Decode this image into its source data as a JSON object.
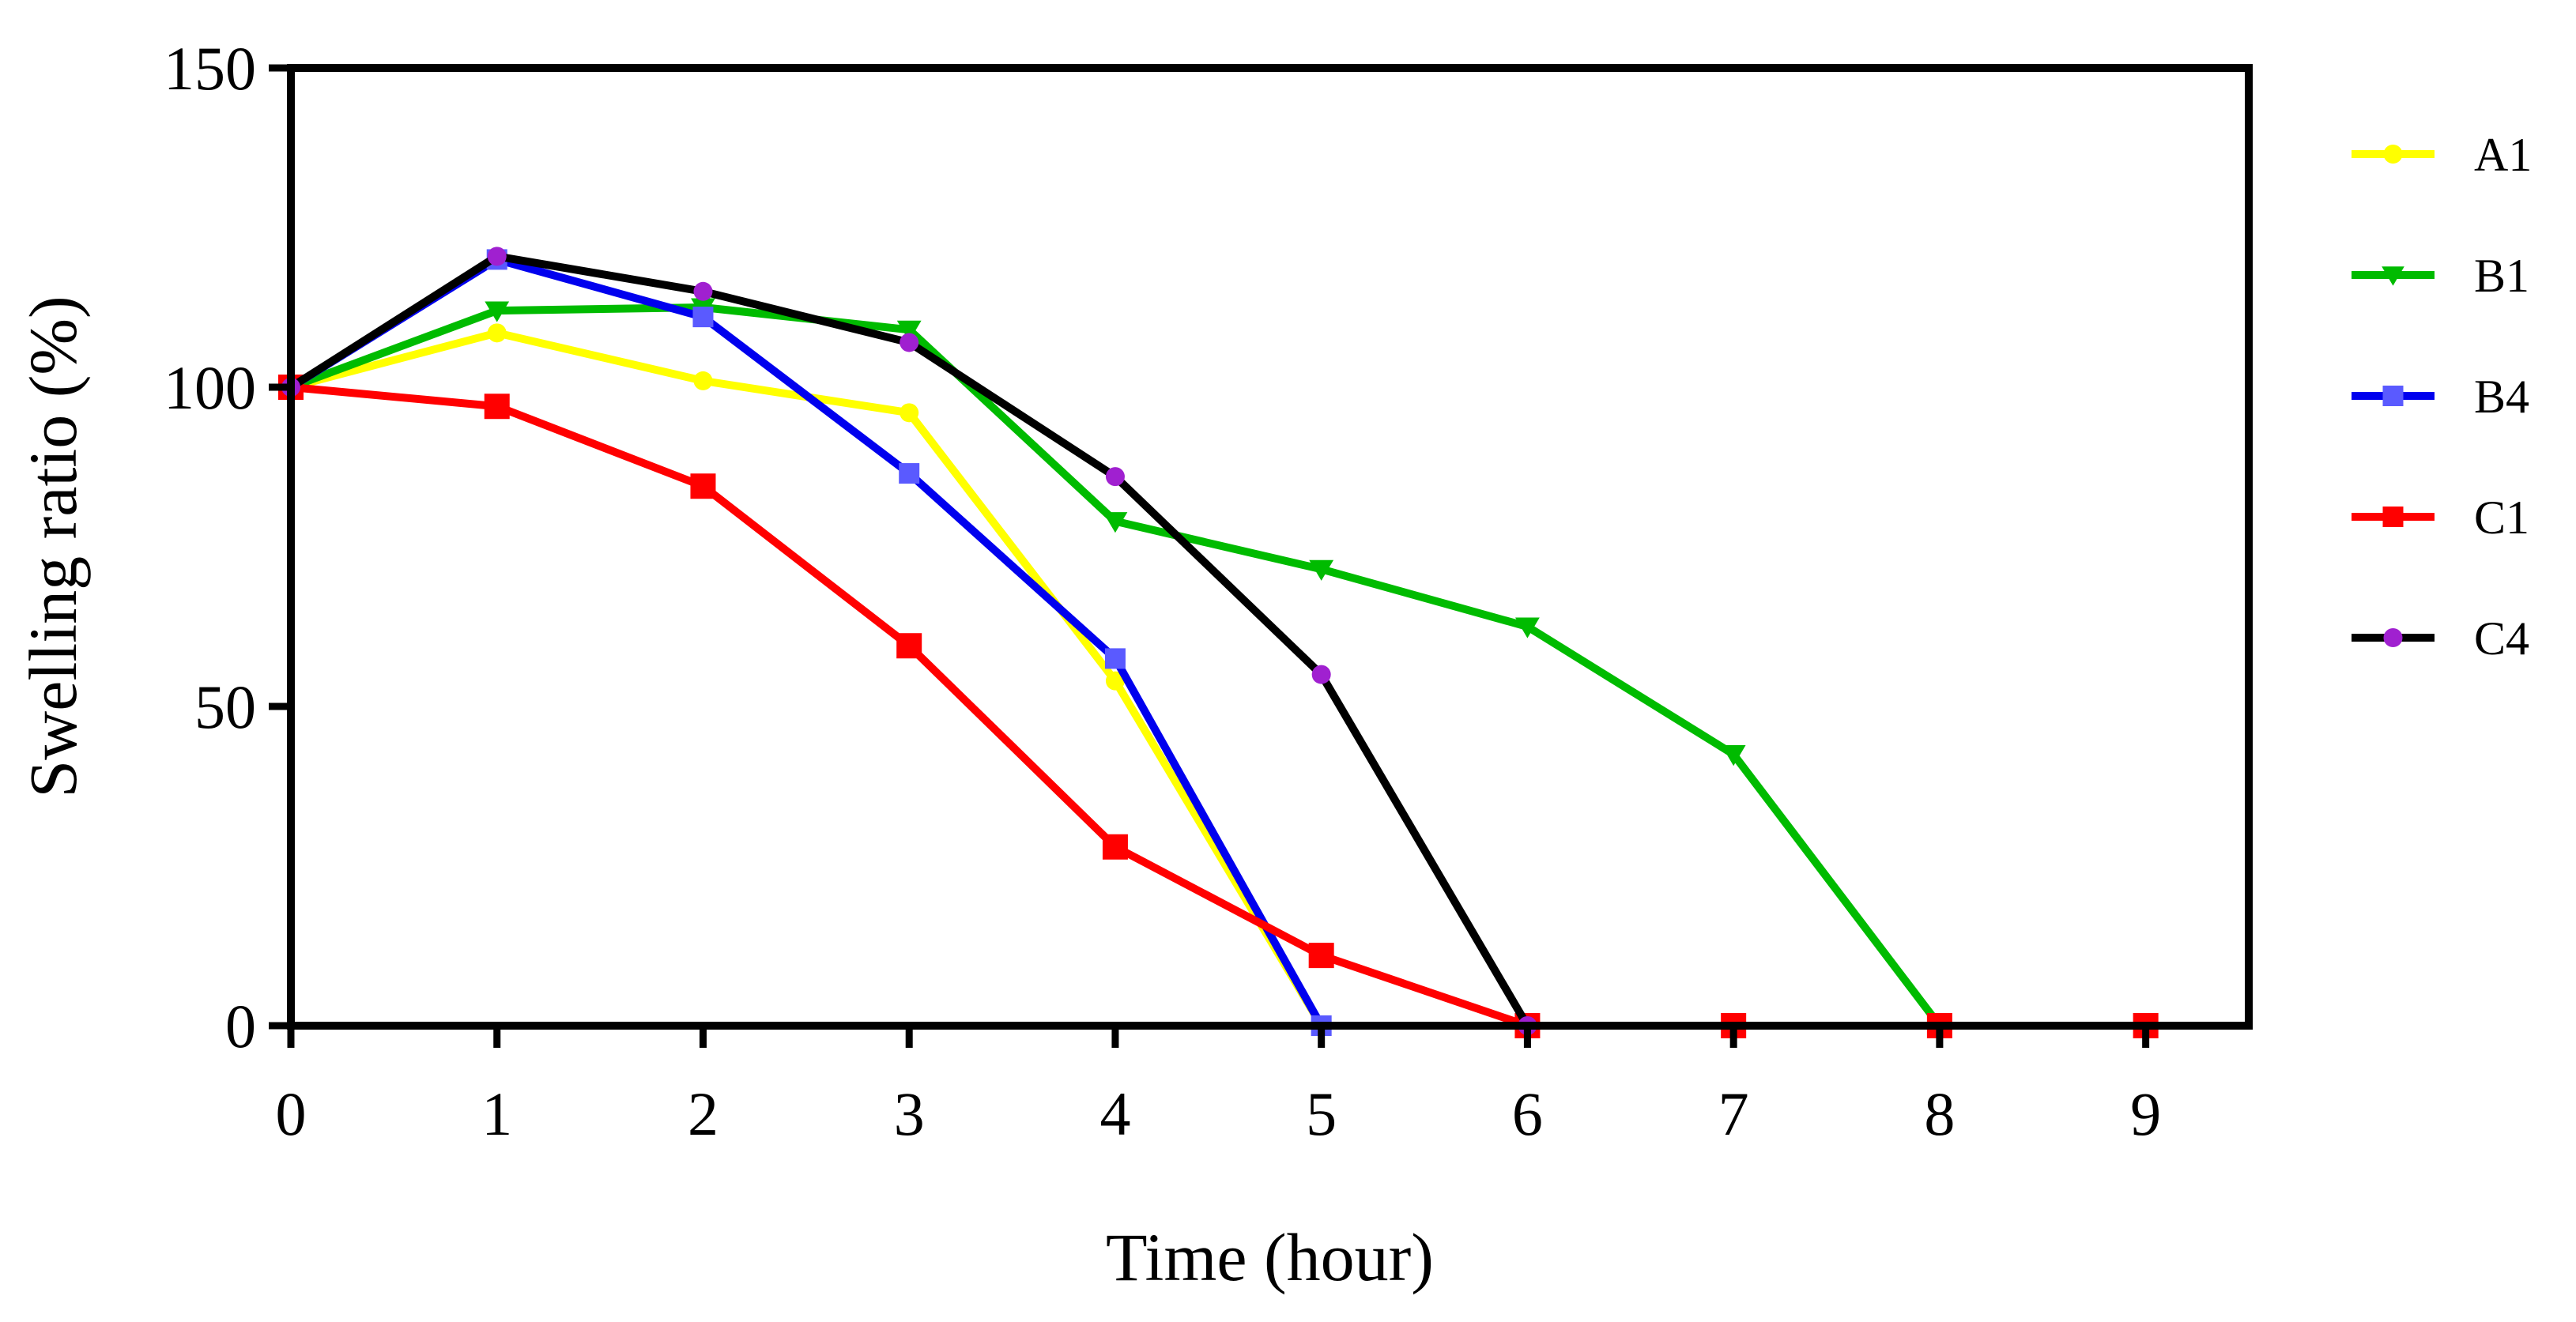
{
  "chart_data": {
    "type": "line",
    "title": "",
    "xlabel": "Time (hour)",
    "ylabel": "Swelling ratio (%)",
    "xlim": [
      0,
      9.5
    ],
    "ylim": [
      0,
      150
    ],
    "xticks": [
      0,
      1,
      2,
      3,
      4,
      5,
      6,
      7,
      8,
      9
    ],
    "yticks": [
      0,
      50,
      100,
      150
    ],
    "grid": false,
    "legend_position": "right",
    "series": [
      {
        "name": "A1",
        "line_color": "#ffff00",
        "marker_color": "#ffff00",
        "marker": "circle",
        "x": [
          0,
          1,
          2,
          3,
          4,
          5,
          6
        ],
        "y": [
          100,
          108.5,
          101,
          96,
          54,
          0,
          0
        ]
      },
      {
        "name": "B1",
        "line_color": "#00bb00",
        "marker_color": "#00bb00",
        "marker": "triangle-down",
        "x": [
          0,
          1,
          2,
          3,
          4,
          5,
          6,
          7,
          8
        ],
        "y": [
          100,
          112,
          112.5,
          109,
          79,
          71.5,
          62.5,
          42.5,
          0
        ]
      },
      {
        "name": "B4",
        "line_color": "#0000ee",
        "marker_color": "#5a5aff",
        "marker": "square",
        "x": [
          0,
          1,
          2,
          3,
          4,
          5
        ],
        "y": [
          100,
          120,
          111,
          86.5,
          57.5,
          0
        ]
      },
      {
        "name": "C1",
        "line_color": "#ff0000",
        "marker_color": "#ff0000",
        "marker": "square",
        "x": [
          0,
          1,
          2,
          3,
          4,
          5,
          6,
          7,
          8,
          9
        ],
        "y": [
          100,
          97,
          84.5,
          59.5,
          28,
          11,
          0,
          0,
          0,
          0
        ]
      },
      {
        "name": "C4",
        "line_color": "#000000",
        "marker_color": "#a020d0",
        "marker": "circle",
        "x": [
          0,
          1,
          2,
          3,
          4,
          5,
          6
        ],
        "y": [
          100,
          120.5,
          115,
          107,
          86,
          55,
          0
        ]
      }
    ]
  }
}
